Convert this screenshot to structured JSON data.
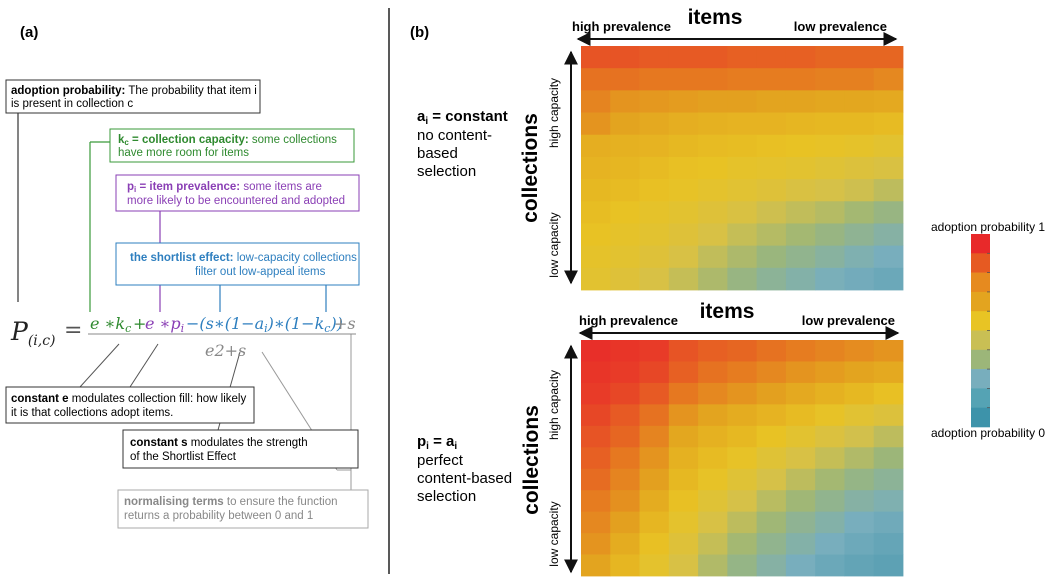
{
  "panel_a": {
    "label": "(a)",
    "adoption_box": {
      "bold": "adoption probability:",
      "line1": " The probability that item i",
      "line2": "is present in collection c"
    },
    "kc_box": {
      "bold": "k",
      "bold_sub": "c",
      "bold_rest": " = collection capacity:",
      "line1": " some collections",
      "line2": "have more room for items"
    },
    "pi_box": {
      "bold": "p",
      "bold_sub": "i",
      "bold_rest": " = item prevalence:",
      "line1": " some items are",
      "line2": "more likely to be encountered and adopted"
    },
    "shortlist_box": {
      "bold": "the shortlist effect:",
      "line1": " low-capacity collections",
      "line2": "filter out low-appeal items"
    },
    "formula": {
      "lhs": "P",
      "lhs_sub": "(i,c)",
      "equals": "=",
      "term_kc": "e ∗k",
      "term_kc_sub": "c",
      "plus1": "+",
      "term_pi": "e ∗p",
      "term_pi_sub": "i",
      "term_short": "−(s∗(1−a",
      "term_short_sub1": "i",
      "term_short_mid": ")∗(1−k",
      "term_short_sub2": "c",
      "term_short_end": "))",
      "term_s": "+s",
      "denominator": "e2+s"
    },
    "e_box": {
      "bold": "constant e",
      "line1": " modulates collection fill: how likely",
      "line2": "it is that collections adopt items."
    },
    "s_box": {
      "bold": "constant s",
      "line1": " modulates the strength",
      "line2": "of the Shortlist Effect"
    },
    "norm_box": {
      "bold": "normalising terms",
      "line1": " to ensure the function",
      "line2": "returns a probability between 0 and 1"
    }
  },
  "panel_b": {
    "label": "(b)",
    "top": {
      "items_label": "items",
      "high_prevalence": "high prevalence",
      "low_prevalence": "low prevalence",
      "collections_label": "collections",
      "high_capacity": "high capacity",
      "low_capacity": "low capacity",
      "desc_bold": "a",
      "desc_bold_sub": "i",
      "desc_bold_rest": " = constant",
      "desc_lines": [
        "no content-",
        "based",
        "selection"
      ]
    },
    "bottom": {
      "items_label": "items",
      "high_prevalence": "high prevalence",
      "low_prevalence": "low prevalence",
      "collections_label": "collections",
      "high_capacity": "high capacity",
      "low_capacity": "low capacity",
      "desc_bold": "p",
      "desc_bold_sub": "i",
      "desc_bold_rest": " = a",
      "desc_bold_sub2": "i",
      "desc_lines": [
        "perfect",
        "content-based",
        "selection"
      ]
    },
    "colorbar": {
      "label_top": "adoption probability 1",
      "label_bottom": "adoption probability 0",
      "colors": [
        "#e8292a",
        "#e65a22",
        "#e68a1f",
        "#e3a41f",
        "#e8c424",
        "#c9bf54",
        "#9cb679",
        "#78aebd",
        "#55a3b4",
        "#3d93aa"
      ]
    }
  },
  "chart_data": [
    {
      "type": "heatmap",
      "title": "",
      "xlabel": "items",
      "ylabel": "collections",
      "value_range": [
        0,
        1
      ],
      "values": [
        [
          0.93,
          0.93,
          0.92,
          0.92,
          0.92,
          0.91,
          0.91,
          0.91,
          0.9,
          0.9,
          0.9
        ],
        [
          0.88,
          0.88,
          0.87,
          0.87,
          0.87,
          0.86,
          0.86,
          0.86,
          0.85,
          0.85,
          0.83
        ],
        [
          0.84,
          0.8,
          0.79,
          0.78,
          0.77,
          0.77,
          0.76,
          0.76,
          0.75,
          0.75,
          0.74
        ],
        [
          0.8,
          0.76,
          0.74,
          0.72,
          0.71,
          0.7,
          0.7,
          0.69,
          0.68,
          0.68,
          0.67
        ],
        [
          0.72,
          0.71,
          0.7,
          0.68,
          0.67,
          0.66,
          0.65,
          0.64,
          0.63,
          0.62,
          0.6
        ],
        [
          0.7,
          0.69,
          0.67,
          0.65,
          0.64,
          0.62,
          0.61,
          0.6,
          0.58,
          0.56,
          0.54
        ],
        [
          0.68,
          0.67,
          0.65,
          0.63,
          0.61,
          0.59,
          0.57,
          0.54,
          0.52,
          0.5,
          0.46
        ],
        [
          0.66,
          0.64,
          0.62,
          0.6,
          0.57,
          0.54,
          0.5,
          0.47,
          0.44,
          0.4,
          0.36
        ],
        [
          0.64,
          0.62,
          0.6,
          0.57,
          0.53,
          0.48,
          0.44,
          0.4,
          0.36,
          0.32,
          0.28
        ],
        [
          0.62,
          0.6,
          0.57,
          0.53,
          0.47,
          0.42,
          0.37,
          0.33,
          0.29,
          0.25,
          0.22
        ],
        [
          0.6,
          0.57,
          0.53,
          0.48,
          0.42,
          0.36,
          0.31,
          0.27,
          0.23,
          0.2,
          0.17
        ]
      ]
    },
    {
      "type": "heatmap",
      "title": "",
      "xlabel": "items",
      "ylabel": "collections",
      "value_range": [
        0,
        1
      ],
      "values": [
        [
          0.99,
          0.98,
          0.97,
          0.93,
          0.91,
          0.9,
          0.88,
          0.86,
          0.84,
          0.82,
          0.8
        ],
        [
          0.98,
          0.97,
          0.95,
          0.91,
          0.88,
          0.86,
          0.83,
          0.8,
          0.78,
          0.76,
          0.74
        ],
        [
          0.97,
          0.95,
          0.92,
          0.87,
          0.83,
          0.8,
          0.77,
          0.74,
          0.71,
          0.68,
          0.65
        ],
        [
          0.95,
          0.92,
          0.88,
          0.8,
          0.76,
          0.73,
          0.7,
          0.67,
          0.63,
          0.59,
          0.56
        ],
        [
          0.93,
          0.9,
          0.84,
          0.75,
          0.71,
          0.68,
          0.64,
          0.6,
          0.55,
          0.51,
          0.46
        ],
        [
          0.91,
          0.87,
          0.8,
          0.71,
          0.67,
          0.63,
          0.58,
          0.53,
          0.48,
          0.43,
          0.38
        ],
        [
          0.89,
          0.84,
          0.77,
          0.68,
          0.63,
          0.58,
          0.52,
          0.46,
          0.4,
          0.35,
          0.31
        ],
        [
          0.86,
          0.81,
          0.73,
          0.65,
          0.58,
          0.52,
          0.45,
          0.39,
          0.33,
          0.28,
          0.25
        ],
        [
          0.83,
          0.77,
          0.69,
          0.61,
          0.53,
          0.46,
          0.39,
          0.32,
          0.27,
          0.22,
          0.19
        ],
        [
          0.8,
          0.73,
          0.65,
          0.57,
          0.48,
          0.4,
          0.33,
          0.27,
          0.22,
          0.18,
          0.15
        ],
        [
          0.76,
          0.69,
          0.61,
          0.53,
          0.43,
          0.35,
          0.28,
          0.22,
          0.17,
          0.14,
          0.12
        ]
      ]
    }
  ]
}
